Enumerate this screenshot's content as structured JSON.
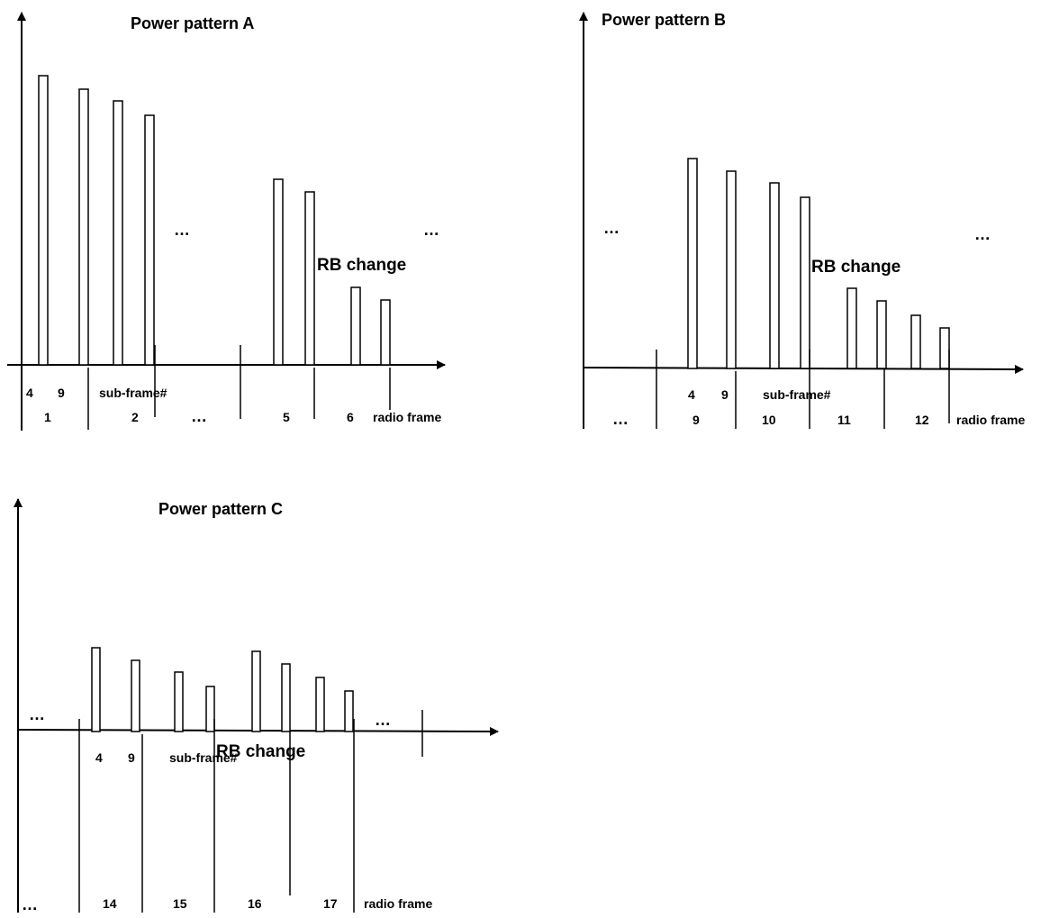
{
  "colors": {
    "stroke": "#000000",
    "background": "#ffffff",
    "bar_fill": "#ffffff"
  },
  "panels": [
    {
      "title": "Power pattern A",
      "change_label": "RB change",
      "subframe_label": "sub-frame#",
      "radioframe_label": "radio frame",
      "subframe_numbers": [
        "4",
        "9"
      ],
      "ellipsis": "…",
      "frame_numbers": [
        "1",
        "2",
        "…",
        "5",
        "6"
      ]
    },
    {
      "title": "Power pattern B",
      "change_label": "RB change",
      "subframe_label": "sub-frame#",
      "radioframe_label": "radio frame",
      "subframe_numbers": [
        "4",
        "9"
      ],
      "ellipsis": "…",
      "frame_numbers": [
        "…",
        "9",
        "10",
        "11",
        "12"
      ]
    },
    {
      "title": "Power pattern C",
      "change_label": "RB change",
      "subframe_label": "sub-frame#",
      "radioframe_label": "radio frame",
      "subframe_numbers": [
        "4",
        "9"
      ],
      "ellipsis": "…",
      "frame_numbers": [
        "…",
        "14",
        "15",
        "16",
        "17"
      ]
    }
  ]
}
